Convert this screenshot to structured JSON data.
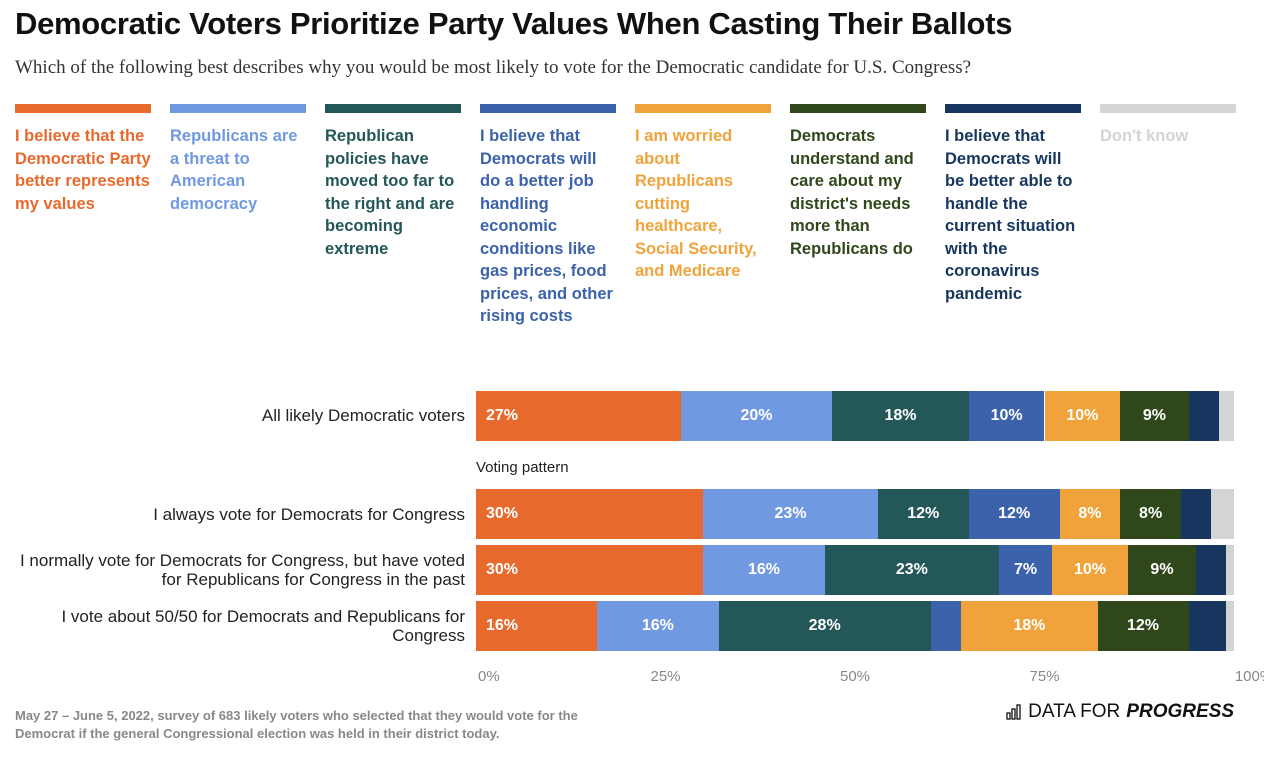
{
  "chart_data": {
    "type": "bar",
    "orientation": "horizontal",
    "stacked": true,
    "title": "Democratic Voters Prioritize Party Values When Casting Their Ballots",
    "subtitle": "Which of the following best describes why you would be most likely to vote for the Democratic candidate for U.S. Congress?",
    "xlim": [
      0,
      100
    ],
    "x_ticks": [
      "0%",
      "25%",
      "50%",
      "75%",
      "100%"
    ],
    "legend_position": "top",
    "series": [
      {
        "name": "I believe that the Democratic Party better represents my values",
        "color": "#E8692C",
        "values": [
          27,
          30,
          30,
          16
        ]
      },
      {
        "name": "Republicans are a threat to American democracy",
        "color": "#7099E2",
        "values": [
          20,
          23,
          16,
          16
        ]
      },
      {
        "name": "Republican policies have moved too far to the right and are becoming extreme",
        "color": "#245757",
        "values": [
          18,
          12,
          23,
          28
        ]
      },
      {
        "name": "I believe that Democrats will do a better job handling economic conditions like gas prices, food prices, and other rising costs",
        "color": "#3B62AA",
        "values": [
          10,
          12,
          7,
          4
        ]
      },
      {
        "name": "I am worried about Republicans cutting healthcare, Social Security, and Medicare",
        "color": "#F0A33A",
        "values": [
          10,
          8,
          10,
          18
        ]
      },
      {
        "name": "Democrats understand and care about my district's needs more than Republicans do",
        "color": "#30471B",
        "values": [
          9,
          8,
          9,
          12
        ]
      },
      {
        "name": "I believe that Democrats will be better able to handle the current situation with the coronavirus pandemic",
        "color": "#17365F",
        "values": [
          4,
          4,
          4,
          5
        ]
      },
      {
        "name": "Don't know",
        "color": "#D3D4D6",
        "values": [
          2,
          3,
          1,
          1
        ]
      }
    ],
    "shown_labels": [
      [
        "27%",
        "20%",
        "18%",
        "10%",
        "10%",
        "9%",
        "",
        ""
      ],
      [
        "30%",
        "23%",
        "12%",
        "12%",
        "8%",
        "8%",
        "",
        ""
      ],
      [
        "30%",
        "16%",
        "23%",
        "7%",
        "10%",
        "9%",
        "",
        ""
      ],
      [
        "16%",
        "16%",
        "28%",
        "",
        "18%",
        "12%",
        "",
        ""
      ]
    ],
    "categories": [
      "All likely Democratic voters",
      "I always vote for Democrats for Congress",
      "I normally vote for Democrats for Congress, but have voted for Republicans for Congress in the past",
      "I vote about 50/50 for Democrats and Republicans for Congress"
    ],
    "group_label": "Voting pattern"
  },
  "footnote": "May 27 – June 5, 2022, survey of 683 likely voters who selected that they would vote for the Democrat if the general Congressional election was held in their district today.",
  "brand": {
    "prefix": "DATA FOR",
    "bold": "PROGRESS",
    "icon": "bar-chart-icon"
  }
}
